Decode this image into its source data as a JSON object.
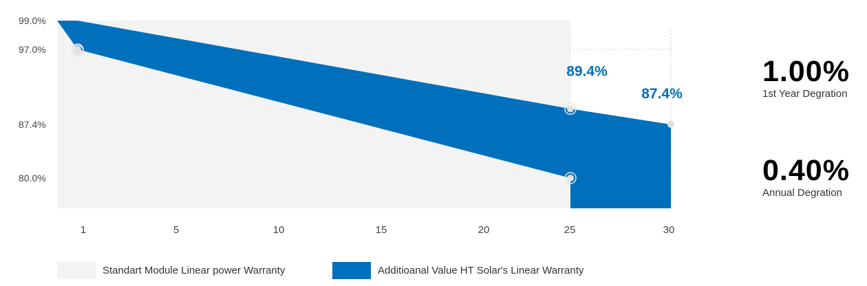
{
  "colors": {
    "accent": "#0070bd",
    "standard": "#f3f3f3",
    "grid": "#c8c8c8",
    "point": "#e0e0e0"
  },
  "chart_data": {
    "type": "area",
    "title": "",
    "xlabel": "",
    "ylabel": "",
    "x_ticks": [
      1,
      5,
      10,
      15,
      20,
      25,
      30
    ],
    "y_ticks": [
      {
        "value": 99.0,
        "label": "99.0%"
      },
      {
        "value": 97.0,
        "label": "97.0%"
      },
      {
        "value": 87.4,
        "label": "87.4%"
      },
      {
        "value": 80.0,
        "label": "80.0%"
      }
    ],
    "series": [
      {
        "name": "Standart Module Linear power Warranty",
        "x": [
          0,
          1,
          25
        ],
        "values": [
          99.0,
          97.0,
          80.0
        ]
      },
      {
        "name": "Additioanal Value HT Solar's Linear Warranty",
        "x": [
          0,
          1,
          25,
          30
        ],
        "values": [
          99.0,
          99.0,
          89.4,
          87.4
        ]
      }
    ],
    "annotations": [
      {
        "x": 25,
        "value": 89.4,
        "label": "89.4%"
      },
      {
        "x": 30,
        "value": 87.4,
        "label": "87.4%"
      }
    ],
    "legend_position": "bottom-left"
  },
  "stats": [
    {
      "value": "1.00%",
      "label": "1st Year Degration"
    },
    {
      "value": "0.40%",
      "label": "Annual Degration"
    }
  ],
  "legend": [
    {
      "label": "Standart Module Linear power Warranty"
    },
    {
      "label": "Additioanal Value HT Solar's Linear Warranty"
    }
  ]
}
